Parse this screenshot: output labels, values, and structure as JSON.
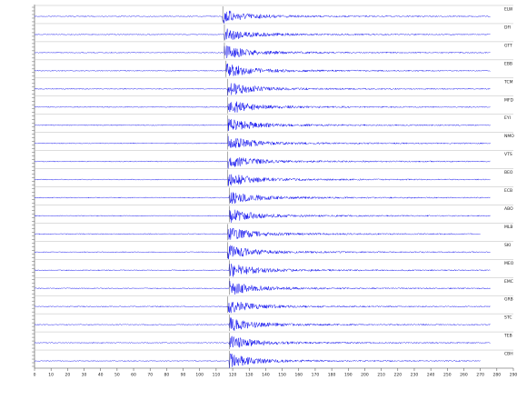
{
  "chart_data": {
    "type": "seismogram",
    "color": "#1010ee",
    "xlim": [
      0,
      290
    ],
    "xticks": [
      0,
      10,
      20,
      30,
      40,
      50,
      60,
      70,
      80,
      90,
      100,
      110,
      120,
      130,
      140,
      150,
      160,
      170,
      180,
      190,
      200,
      210,
      220,
      230,
      240,
      250,
      260,
      270,
      280,
      290
    ],
    "traces": [
      {
        "name": "ELW",
        "onset": 114,
        "end": 276
      },
      {
        "name": "DFI",
        "onset": 115,
        "end": 276
      },
      {
        "name": "GTT",
        "onset": 115,
        "end": 276
      },
      {
        "name": "EBB",
        "onset": 116,
        "end": 276
      },
      {
        "name": "TCM",
        "onset": 117,
        "end": 276
      },
      {
        "name": "MFD",
        "onset": 117,
        "end": 276
      },
      {
        "name": "EYI",
        "onset": 117,
        "end": 276
      },
      {
        "name": "NMO",
        "onset": 117,
        "end": 276
      },
      {
        "name": "VTS",
        "onset": 117,
        "end": 276
      },
      {
        "name": "BEO",
        "onset": 117,
        "end": 276
      },
      {
        "name": "ECB",
        "onset": 118,
        "end": 276
      },
      {
        "name": "ABO",
        "onset": 118,
        "end": 276
      },
      {
        "name": "MLB",
        "onset": 117,
        "end": 270
      },
      {
        "name": "SKI",
        "onset": 117,
        "end": 276
      },
      {
        "name": "MEO",
        "onset": 118,
        "end": 276
      },
      {
        "name": "EMC",
        "onset": 118,
        "end": 276
      },
      {
        "name": "GRB",
        "onset": 117,
        "end": 276
      },
      {
        "name": "STC",
        "onset": 118,
        "end": 276
      },
      {
        "name": "TEB",
        "onset": 118,
        "end": 276
      },
      {
        "name": "CBH",
        "onset": 118,
        "end": 270
      }
    ]
  }
}
